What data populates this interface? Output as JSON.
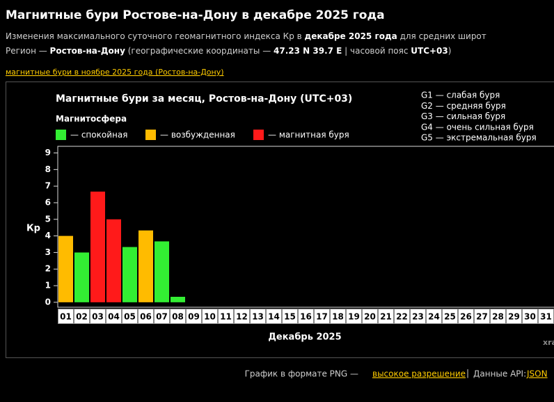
{
  "header": {
    "title": "Магнитные бури Ростове-на-Дону в декабре 2025 года",
    "line1": [
      "Изменения максимального суточного геомагнитного индекса Кр в ",
      "декабре 2025 года",
      " для средних широт"
    ],
    "line2": [
      "Регион — ",
      "Ростов-на-Дону",
      " (географические координаты — ",
      "47.23 N 39.7 E",
      " | часовой пояс ",
      "UTC+03",
      ")"
    ],
    "prev_link": "магнитные бури в ноябре 2025 года (Ростов-на-Дону)"
  },
  "chart_data": {
    "type": "bar",
    "title": "Магнитные бури за месяц, Ростов-на-Дону (UTC+03)",
    "legend_title": "Магнитосфера",
    "legend": [
      {
        "label": "— спокойная",
        "color": "#33ee33"
      },
      {
        "label": "— возбужденная",
        "color": "#ffbb00"
      },
      {
        "label": "— магнитная буря",
        "color": "#ff1a1a"
      }
    ],
    "storm_scale": [
      "G1 — слабая буря",
      "G2 — средняя буря",
      "G3 — сильная буря",
      "G4 — очень сильная буря",
      "G5 — экстремальная буря"
    ],
    "ylabel": "Кр",
    "xlabel": "Декабрь 2025",
    "watermark": "xra",
    "categories": [
      "01",
      "02",
      "03",
      "04",
      "05",
      "06",
      "07",
      "08",
      "09",
      "10",
      "11",
      "12",
      "13",
      "14",
      "15",
      "16",
      "17",
      "18",
      "19",
      "20",
      "21",
      "22",
      "23",
      "24",
      "25",
      "26",
      "27",
      "28",
      "29",
      "30",
      "31"
    ],
    "values": [
      4,
      3,
      6.67,
      5,
      3.33,
      4.33,
      3.67,
      0.33,
      null,
      null,
      null,
      null,
      null,
      null,
      null,
      null,
      null,
      null,
      null,
      null,
      null,
      null,
      null,
      null,
      null,
      null,
      null,
      null,
      null,
      null,
      null
    ],
    "colors": [
      "#ffbb00",
      "#33ee33",
      "#ff1a1a",
      "#ff1a1a",
      "#33ee33",
      "#ffbb00",
      "#33ee33",
      "#33ee33",
      null,
      null,
      null,
      null,
      null,
      null,
      null,
      null,
      null,
      null,
      null,
      null,
      null,
      null,
      null,
      null,
      null,
      null,
      null,
      null,
      null,
      null,
      null
    ],
    "ylim": [
      -0.3,
      9.4
    ],
    "yticks": [
      0,
      1,
      2,
      3,
      4,
      5,
      6,
      7,
      8,
      9
    ],
    "grid": false
  },
  "footer": {
    "text": "График в формате PNG —",
    "link": "высокое разрешение",
    "sep": "|",
    "api": "Данные API:",
    "api_link": "JSON"
  }
}
